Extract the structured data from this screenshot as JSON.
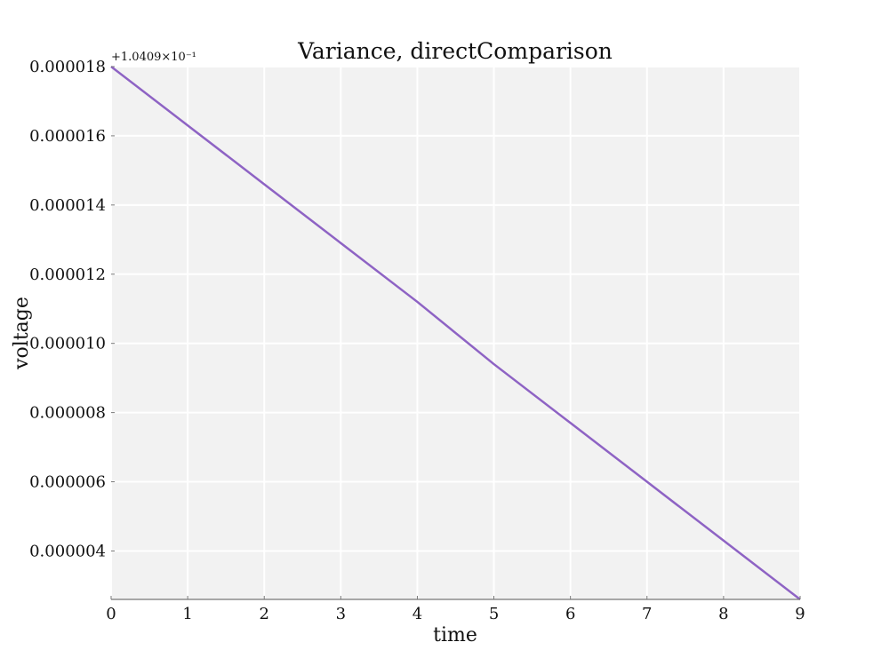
{
  "chart_data": {
    "type": "line",
    "title": "Variance, directComparison",
    "xlabel": "time",
    "ylabel": "voltage",
    "y_offset_label": "+1.0409×10⁻¹",
    "xlim": [
      0,
      9
    ],
    "ylim": [
      2.6e-06,
      1.8e-05
    ],
    "x_ticks": [
      0,
      1,
      2,
      3,
      4,
      5,
      6,
      7,
      8,
      9
    ],
    "x_tick_labels": [
      "0",
      "1",
      "2",
      "3",
      "4",
      "5",
      "6",
      "7",
      "8",
      "9"
    ],
    "y_ticks": [
      4e-06,
      6e-06,
      8e-06,
      1e-05,
      1.2e-05,
      1.4e-05,
      1.6e-05,
      1.8e-05
    ],
    "y_tick_labels": [
      "0.000004",
      "0.000006",
      "0.000008",
      "0.000010",
      "0.000012",
      "0.000014",
      "0.000016",
      "0.000018"
    ],
    "grid": true,
    "background_color": "#f2f2f2",
    "grid_color": "#ffffff",
    "series": [
      {
        "color": "#8e63c4",
        "x": [
          0,
          1,
          2,
          3,
          4,
          5,
          6,
          7,
          8,
          9
        ],
        "y": [
          1.8e-05,
          1.63e-05,
          1.46e-05,
          1.29e-05,
          1.12e-05,
          9.4e-06,
          7.7e-06,
          6e-06,
          4.3e-06,
          2.6e-06
        ]
      }
    ]
  }
}
